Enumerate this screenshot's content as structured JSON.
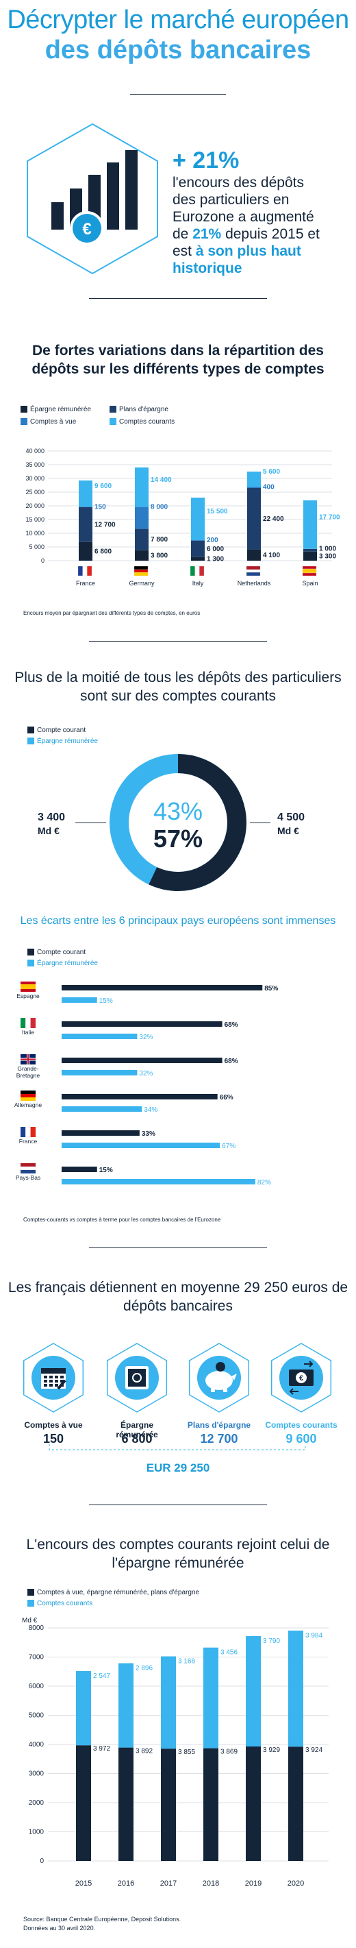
{
  "header": {
    "title_line1": "Décrypter le marché européen",
    "title_line2": "des dépôts bancaires"
  },
  "hero": {
    "stat": "+ 21%",
    "text_a": "l'encours des dépôts des particuliers en Eurozone a augmenté de ",
    "text_b": "21%",
    "text_c": " depuis 2015 et est ",
    "text_d": "à son plus haut historique",
    "icon": "bar-chart-euro-icon"
  },
  "colors": {
    "navy": "#14253a",
    "mid": "#2a7cc4",
    "light": "#3ab4ee",
    "cyan": "#1a9bd9"
  },
  "section1": {
    "title": "De fortes variations dans la répartition des dépôts sur les différents types de comptes",
    "note": "Encours moyen par épargnant des différents types de comptes, en euros",
    "legend": [
      "Épargne rémunérée",
      "Plans d'épargne",
      "Comptes à vue",
      "Comptes courants"
    ]
  },
  "section2": {
    "title": "Plus de la moitié de tous les dépôts des particuliers sont sur des comptes courants",
    "legend": [
      "Compte courant",
      "Épargne rémunérée"
    ],
    "left_value": "3 400",
    "left_unit": "Md €",
    "right_value": "4 500",
    "right_unit": "Md €",
    "pct_light": "43%",
    "pct_dark": "57%"
  },
  "section3": {
    "title": "Les écarts entre les 6 principaux pays européens sont immenses",
    "legend": [
      "Compte courant",
      "Épargne rémunérée"
    ],
    "note": "Comptes-courants vs comptes à terme pour les comptes bancaires de l'Eurozone"
  },
  "section4": {
    "title": "Les français détiennent en moyenne 29 250 euros de dépôts bancaires",
    "items": [
      {
        "label": "Comptes à vue",
        "value": "150",
        "icon": "calendar-icon"
      },
      {
        "label": "Épargne rémunérée",
        "value": "6 800",
        "icon": "safe-icon"
      },
      {
        "label": "Plans d'épargne",
        "value": "12 700",
        "icon": "piggy-bank-icon"
      },
      {
        "label": "Comptes courants",
        "value": "9 600",
        "icon": "euro-transfer-icon"
      }
    ],
    "total": "EUR 29 250"
  },
  "section5": {
    "title": "L'encours des comptes courants rejoint celui de l'épargne rémunérée",
    "legend": [
      "Comptes à vue, épargne rémunérée, plans d'épargne",
      "Comptes courants"
    ],
    "source1": "Source: Banque Centrale Européenne, Deposit Solutions.",
    "source2": "Données au 30 avril 2020."
  },
  "chart_data": [
    {
      "type": "bar",
      "stacked": true,
      "categories": [
        "France",
        "Germany",
        "Italy",
        "Netherlands",
        "Spain"
      ],
      "series": [
        {
          "name": "Épargne rémunérée",
          "values": [
            6800,
            3800,
            1300,
            4100,
            3300
          ]
        },
        {
          "name": "Plans d'épargne",
          "values": [
            12700,
            7800,
            6000,
            22400,
            1000
          ]
        },
        {
          "name": "Comptes à vue",
          "values": [
            150,
            8000,
            200,
            400,
            0
          ]
        },
        {
          "name": "Comptes courants",
          "values": [
            9600,
            14400,
            15500,
            5600,
            17700
          ]
        }
      ],
      "labels": [
        [
          "6 800",
          "3 800",
          "1 300",
          "4 100",
          "3 300"
        ],
        [
          "12 700",
          "7 800",
          "6 000",
          "22 400",
          "1 000"
        ],
        [
          "150",
          "8 000",
          "200",
          "400",
          ""
        ],
        [
          "9 600",
          "14 400",
          "15 500",
          "5 600",
          "17 700"
        ]
      ],
      "yticks": [
        "0",
        "5 000",
        "10 000",
        "15 000",
        "20 000",
        "25 000",
        "30 000",
        "35 000",
        "40 000"
      ],
      "ylim": [
        0,
        40000
      ],
      "grid": true
    },
    {
      "type": "pie",
      "donut": true,
      "slices": [
        {
          "name": "Compte courant",
          "value": 57
        },
        {
          "name": "Épargne rémunérée",
          "value": 43
        }
      ]
    },
    {
      "type": "bar",
      "orientation": "horizontal",
      "categories": [
        "Espagne",
        "Italie",
        "Grande-Bretagne",
        "Allemagne",
        "France",
        "Pays-Bas"
      ],
      "series": [
        {
          "name": "Compte courant",
          "values": [
            85,
            68,
            68,
            66,
            33,
            15
          ]
        },
        {
          "name": "Épargne rémunérée",
          "values": [
            15,
            32,
            32,
            34,
            67,
            82
          ]
        }
      ],
      "cat_lines": [
        [
          "Espagne"
        ],
        [
          "Italie"
        ],
        [
          "Grande-",
          "Bretagne"
        ],
        [
          "Allemagne"
        ],
        [
          "France"
        ],
        [
          "Pays-Bas"
        ]
      ],
      "unit": "%"
    },
    {
      "type": "bar",
      "stacked": true,
      "categories": [
        "2015",
        "2016",
        "2017",
        "2018",
        "2019",
        "2020"
      ],
      "series": [
        {
          "name": "Comptes à vue, épargne rémunérée, plans d'épargne",
          "values": [
            3972,
            3892,
            3855,
            3869,
            3929,
            3924
          ]
        },
        {
          "name": "Comptes courants",
          "values": [
            2547,
            2896,
            3168,
            3456,
            3790,
            3984
          ]
        }
      ],
      "labels": [
        [
          "3 972",
          "3 892",
          "3 855",
          "3 869",
          "3 929",
          "3 924"
        ],
        [
          "2 547",
          "2 896",
          "3 168",
          "3 456",
          "3 790",
          "3 984"
        ]
      ],
      "ylabel": "Md €",
      "yticks": [
        "0",
        "1000",
        "2000",
        "3000",
        "4000",
        "5000",
        "6000",
        "7000",
        "8000"
      ],
      "ylim": [
        0,
        8000
      ],
      "grid": true
    }
  ]
}
